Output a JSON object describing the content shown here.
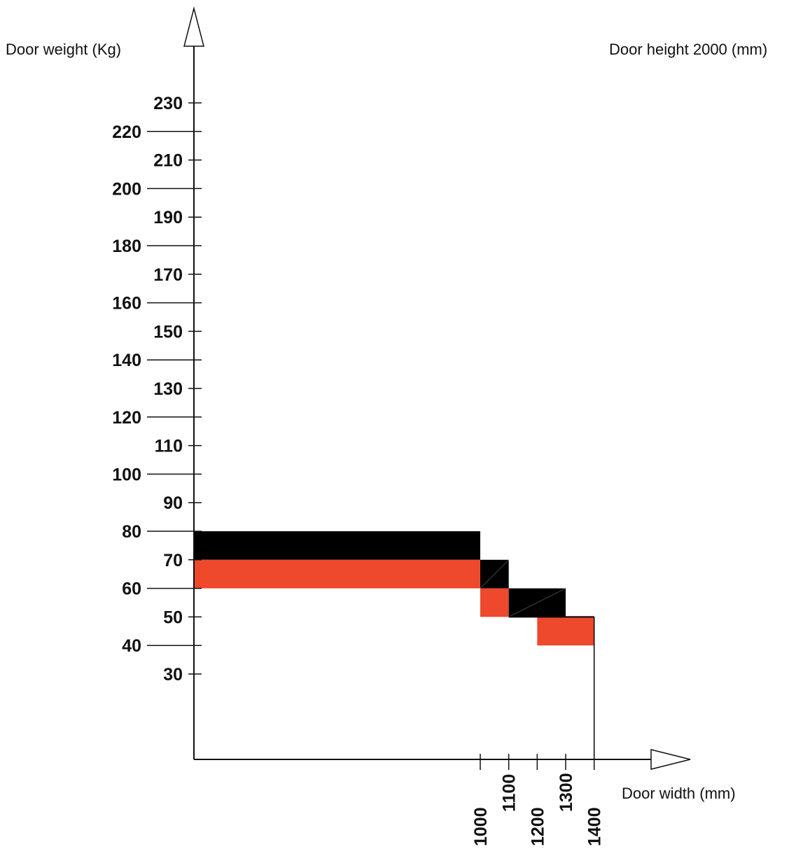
{
  "chart_data": {
    "type": "area",
    "title": "",
    "ylabel": "Door weight (Kg)",
    "xlabel": "Door width (mm)",
    "annotation": "Door height 2000 (mm)",
    "y_ticks": [
      30,
      40,
      50,
      60,
      70,
      80,
      90,
      100,
      110,
      120,
      130,
      140,
      150,
      160,
      170,
      180,
      190,
      200,
      210,
      220,
      230
    ],
    "x_ticks": [
      1000,
      1100,
      1200,
      1300,
      1400
    ],
    "ylim": [
      0,
      240
    ],
    "colors": {
      "black": "#000000",
      "red": "#ee482d",
      "axis": "#111111"
    },
    "regions": [
      {
        "color": "black",
        "x": [
          0,
          1000
        ],
        "y": [
          70,
          80
        ]
      },
      {
        "color": "red",
        "x": [
          0,
          1000
        ],
        "y": [
          60,
          70
        ]
      },
      {
        "color": "black",
        "x": [
          1000,
          1100
        ],
        "y": [
          60,
          70
        ]
      },
      {
        "color": "red",
        "x": [
          1000,
          1100
        ],
        "y": [
          50,
          60
        ]
      },
      {
        "color": "black",
        "x": [
          1100,
          1300
        ],
        "y": [
          50,
          60
        ]
      },
      {
        "color": "red",
        "x": [
          1200,
          1400
        ],
        "y": [
          40,
          50
        ]
      }
    ]
  }
}
